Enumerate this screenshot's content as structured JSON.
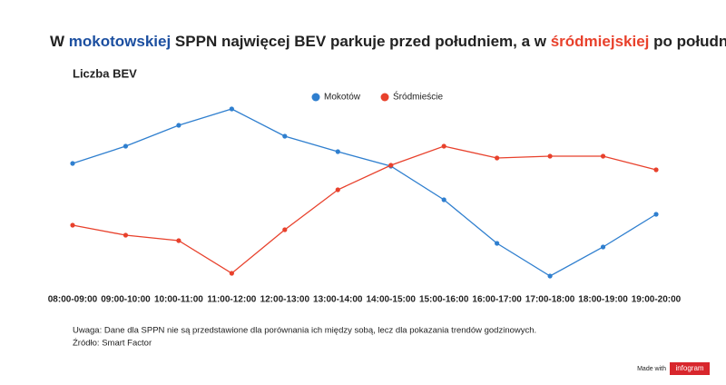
{
  "chart_data": {
    "type": "line",
    "title_parts": [
      {
        "text": "W ",
        "color": "#222222"
      },
      {
        "text": "mokotowskiej",
        "color": "#1c4fa0"
      },
      {
        "text": " SPPN najwięcej BEV parkuje przed południem, a w ",
        "color": "#222222"
      },
      {
        "text": "śródmiejskiej",
        "color": "#e8412c"
      },
      {
        "text": " po południu",
        "color": "#222222"
      }
    ],
    "subtitle": "Liczba BEV",
    "categories": [
      "08:00-09:00",
      "09:00-10:00",
      "10:00-11:00",
      "11:00-12:00",
      "12:00-13:00",
      "13:00-14:00",
      "14:00-15:00",
      "15:00-16:00",
      "16:00-17:00",
      "17:00-18:00",
      "18:00-19:00",
      "19:00-20:00"
    ],
    "series": [
      {
        "name": "Mokotów",
        "color": "#2f7fcf",
        "values": [
          70,
          79.5,
          91,
          100,
          85,
          76.5,
          68.5,
          50,
          26,
          8,
          24,
          42
        ]
      },
      {
        "name": "Śródmieście",
        "color": "#e8412c",
        "values": [
          36,
          30.5,
          27.5,
          9.5,
          33.5,
          55.5,
          69,
          79.5,
          73,
          74,
          74,
          66.5
        ]
      }
    ],
    "ylim": [
      0,
      100
    ],
    "notes": [
      "Uwaga: Dane dla SPPN nie są przedstawione dla porównania ich między sobą, lecz dla pokazania trendów godzinowych.",
      "Źródło: Smart Factor"
    ],
    "badge": {
      "made_with": "Made with",
      "brand": "infogram"
    }
  }
}
